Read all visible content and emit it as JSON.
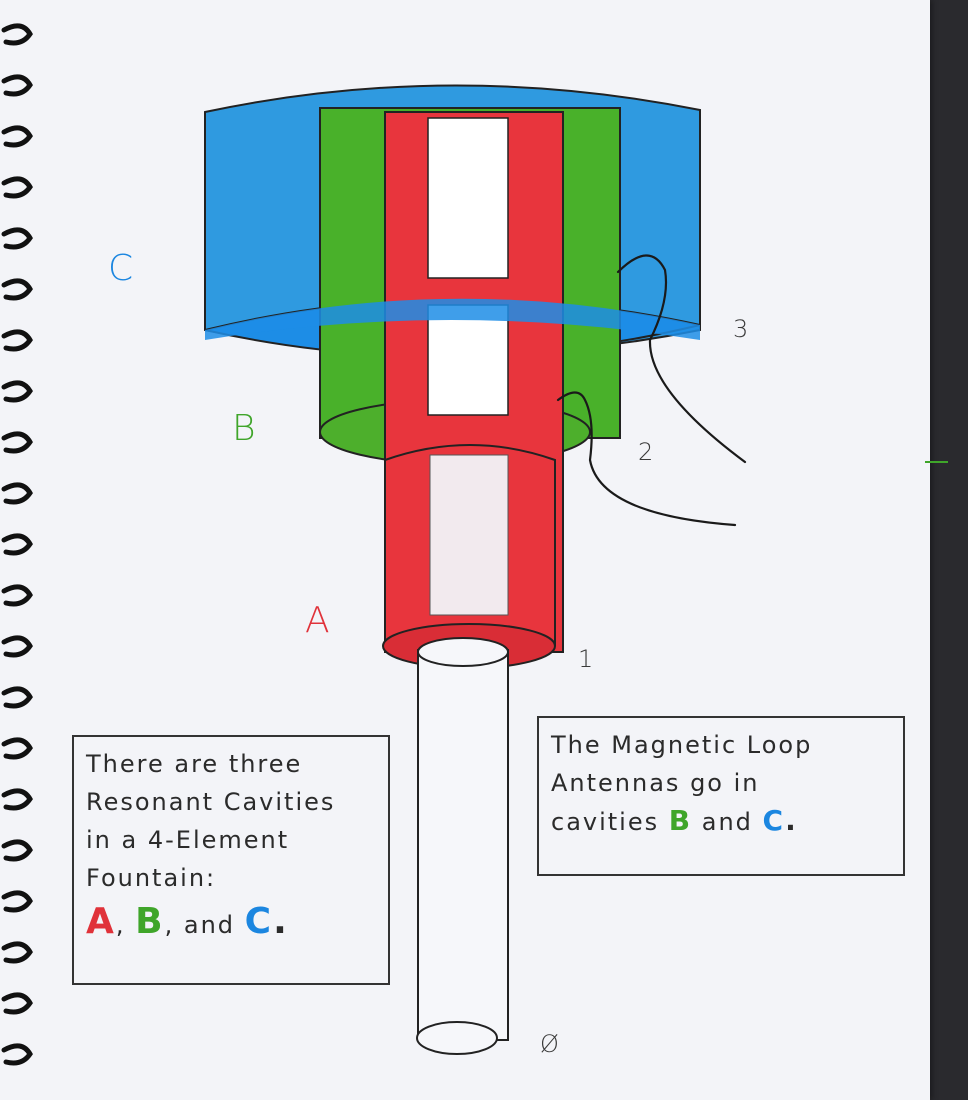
{
  "labels": {
    "cavity_a": "A",
    "cavity_b": "B",
    "cavity_c": "C",
    "point_0": "Ø",
    "point_1": "1",
    "point_2": "2",
    "point_3": "3"
  },
  "note_left": {
    "line1": "There are three",
    "line2": "Resonant Cavities",
    "line3": "in a 4-Element",
    "line4": "Fountain:",
    "a": "A",
    "sep1": ",",
    "b": "B",
    "sep2": ", and",
    "c": "C",
    "end": "."
  },
  "note_right": {
    "line1": "The Magnetic Loop",
    "line2": "Antennas go in",
    "line3_prefix": "cavities",
    "b": "B",
    "mid": "and",
    "c": "C",
    "end": "."
  },
  "colors": {
    "cavity_a": "#e0323a",
    "cavity_b": "#3fa52a",
    "cavity_c": "#1b86e0",
    "paper": "#f3f4f8"
  }
}
